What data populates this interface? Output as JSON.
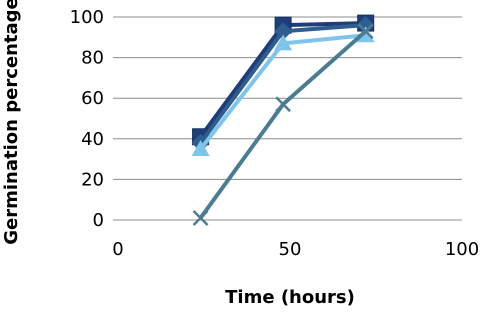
{
  "chart_data": {
    "type": "line",
    "title": "",
    "xlabel": "Time (hours)",
    "ylabel": "Germination percentage",
    "xlim": [
      0,
      100
    ],
    "ylim": [
      0,
      100
    ],
    "x_ticks": [
      "0",
      "50",
      "100"
    ],
    "y_ticks": [
      "0",
      "20",
      "40",
      "60",
      "80",
      "100"
    ],
    "grid": "horizontal",
    "legend": "none",
    "series": [
      {
        "color": "#1f3d7a",
        "marker": "square",
        "x": [
          24,
          48,
          72
        ],
        "y": [
          41,
          96,
          97
        ]
      },
      {
        "color": "#2e5e8e",
        "marker": "diamond",
        "x": [
          24,
          48,
          72
        ],
        "y": [
          38,
          93,
          96
        ]
      },
      {
        "color": "#7fc4ea",
        "marker": "triangle",
        "x": [
          24,
          48,
          72
        ],
        "y": [
          35,
          87,
          91
        ]
      },
      {
        "color": "#4a7d92",
        "marker": "x",
        "x": [
          24,
          48,
          72
        ],
        "y": [
          1,
          57,
          93
        ]
      }
    ]
  }
}
